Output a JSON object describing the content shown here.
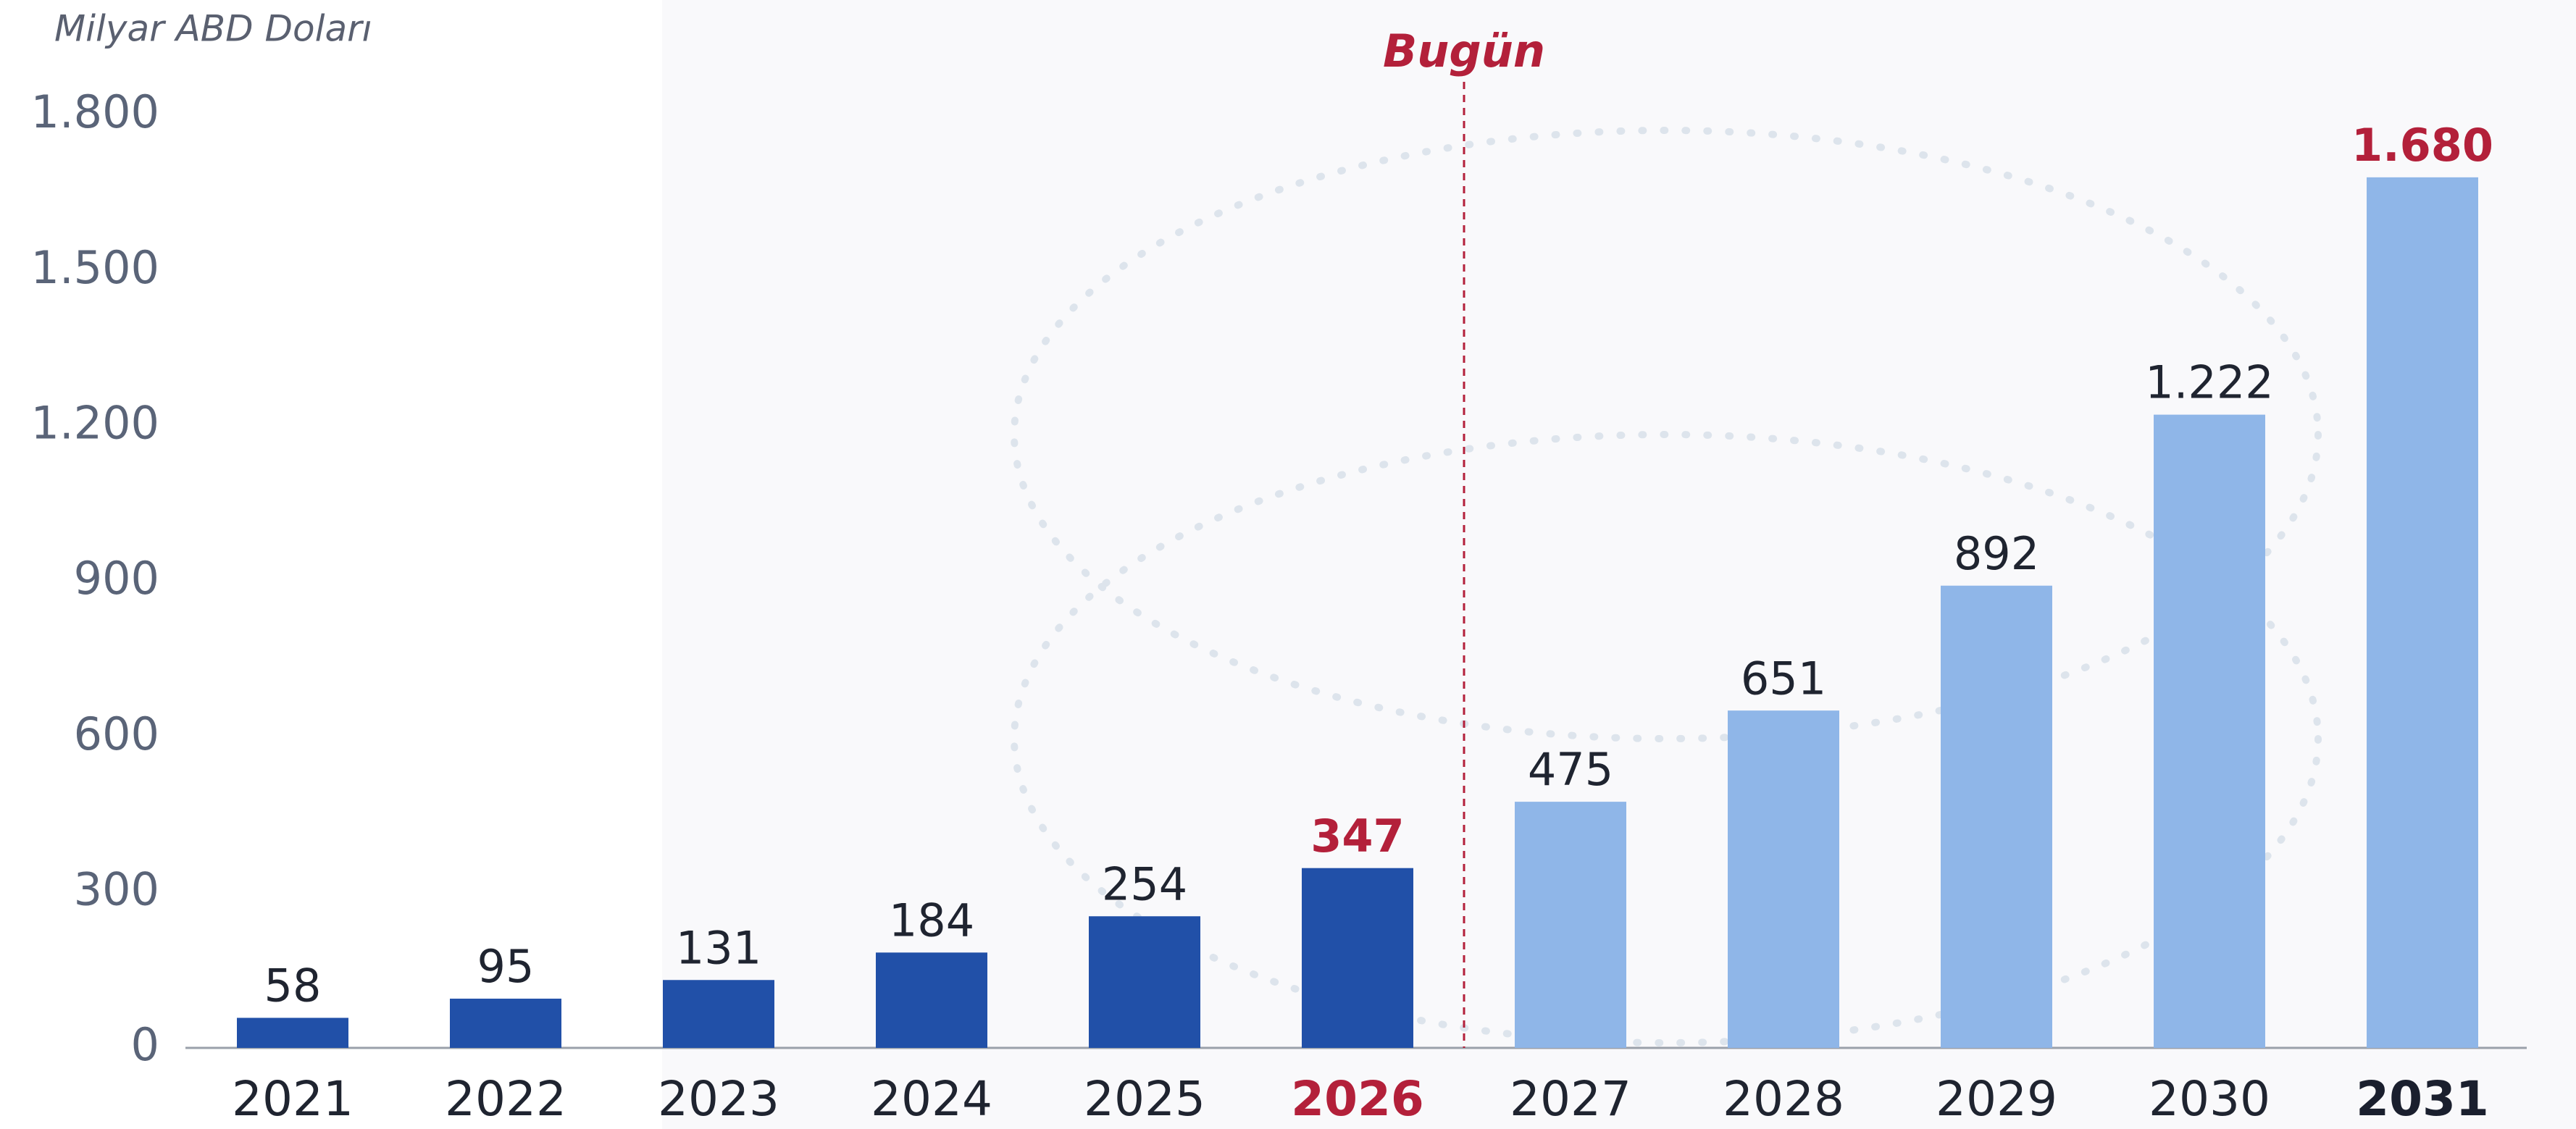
{
  "chart_data": {
    "type": "bar",
    "y_label": "Milyar ABD Doları",
    "categories": [
      "2021",
      "2022",
      "2023",
      "2024",
      "2025",
      "2026",
      "2027",
      "2028",
      "2029",
      "2030",
      "2031"
    ],
    "values": [
      58,
      95,
      131,
      184,
      254,
      347,
      475,
      651,
      892,
      1222,
      1680
    ],
    "value_labels": [
      "58",
      "95",
      "131",
      "184",
      "254",
      "347",
      "475",
      "651",
      "892",
      "1.222",
      "1.680"
    ],
    "colors": [
      "#2150a8",
      "#2150a8",
      "#2150a8",
      "#2150a8",
      "#2150a8",
      "#2150a8",
      "#8fb6e8",
      "#8fb6e8",
      "#8fb6e8",
      "#8fb6e8",
      "#8fb6e8"
    ],
    "value_label_colors": [
      "#1f2430",
      "#1f2430",
      "#1f2430",
      "#1f2430",
      "#1f2430",
      "#b3203a",
      "#1f2430",
      "#1f2430",
      "#1f2430",
      "#1f2430",
      "#b3203a"
    ],
    "category_label_colors": [
      "#1f2430",
      "#1f2430",
      "#1f2430",
      "#1f2430",
      "#1f2430",
      "#b3203a",
      "#1f2430",
      "#1f2430",
      "#1f2430",
      "#1f2430",
      "#1a1f2e"
    ],
    "bold_categories": [
      "2026",
      "2031"
    ],
    "ylim": [
      0,
      1800
    ],
    "yticks": [
      0,
      300,
      600,
      900,
      {
        "value": 1200,
        "label": "1.200"
      },
      {
        "value": 1500,
        "label": "1.500"
      },
      {
        "value": 1800,
        "label": "1.800"
      }
    ],
    "annotation": {
      "text": "Bugün",
      "after": "2026",
      "color": "#b3203a"
    }
  }
}
